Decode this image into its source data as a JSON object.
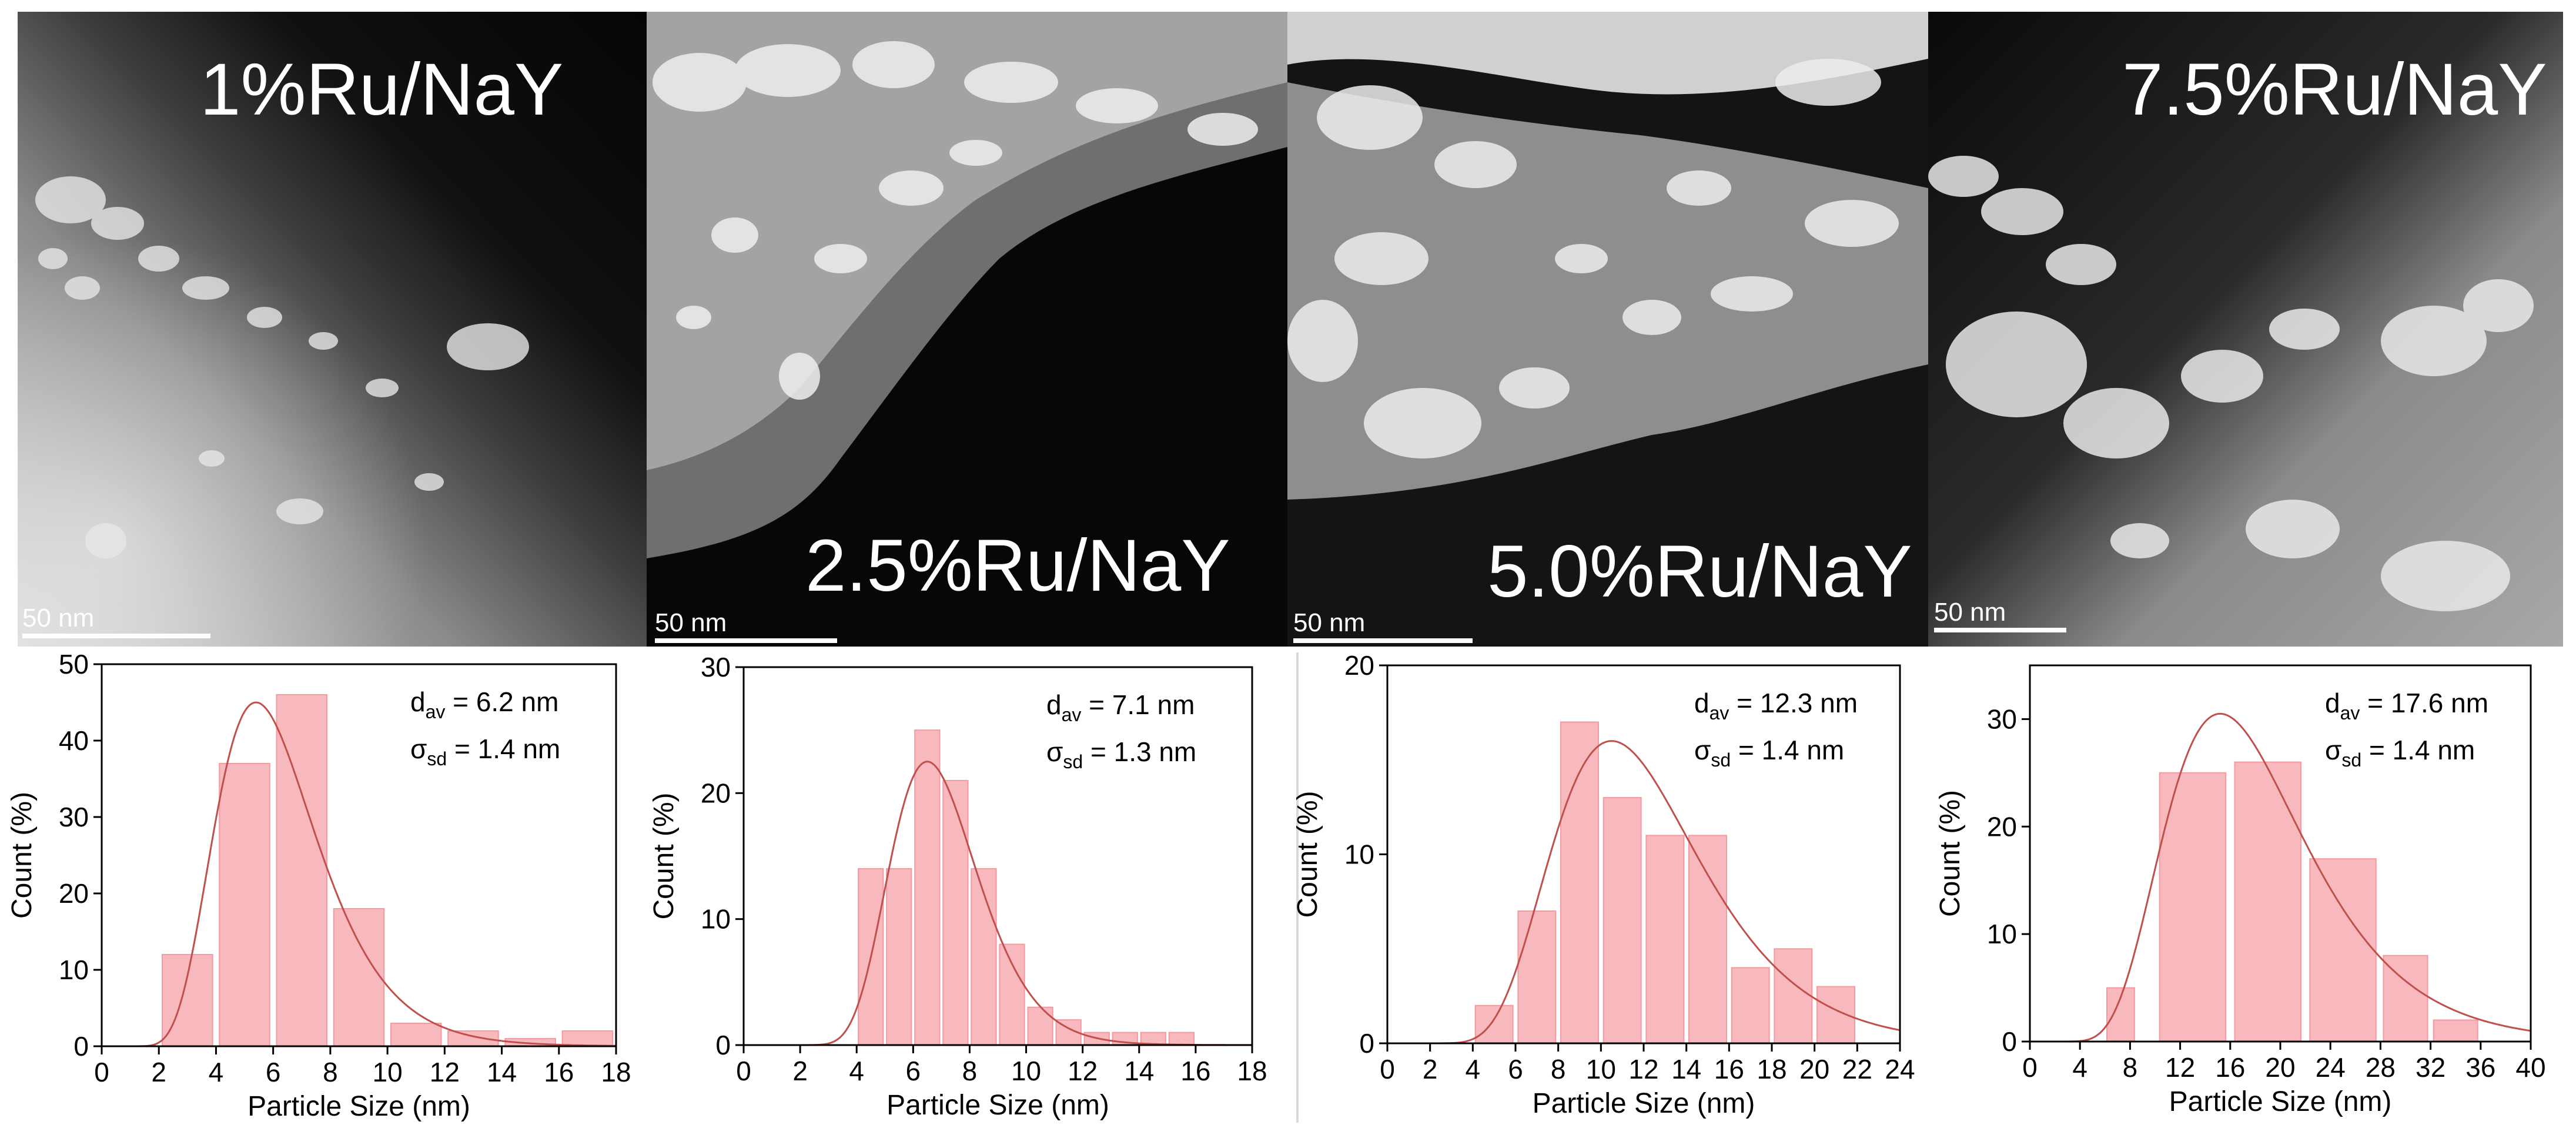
{
  "panels": [
    {
      "label": "1%Ru/NaY",
      "scale_bar": "50 nm"
    },
    {
      "label": "2.5%Ru/NaY",
      "scale_bar": "50 nm"
    },
    {
      "label": "5.0%Ru/NaY",
      "scale_bar": "50 nm"
    },
    {
      "label": "7.5%Ru/NaY",
      "scale_bar": "50 nm"
    }
  ],
  "colors": {
    "bar_fill": "#f7b9bd",
    "bar_stroke": "#f49aa1",
    "fit_line": "#c0504d",
    "axis": "#000000"
  },
  "chart_data": [
    {
      "type": "bar",
      "xlabel": "Particle Size (nm)",
      "ylabel": "Count (%)",
      "xlim": [
        0,
        18
      ],
      "ylim": [
        0,
        50
      ],
      "xticks": [
        0,
        2,
        4,
        6,
        8,
        10,
        12,
        14,
        16,
        18
      ],
      "yticks": [
        0,
        10,
        20,
        30,
        40,
        50
      ],
      "x": [
        3,
        5,
        7,
        9,
        11,
        13,
        15,
        17
      ],
      "bin_width": 2,
      "values": [
        12,
        37,
        46,
        18,
        3,
        2,
        1,
        2
      ],
      "annotation_line1": "= 6.2 nm",
      "annotation_line2": "= 1.4 nm",
      "fit": {
        "type": "lognormal",
        "mode": 5.4,
        "peak": 45,
        "sigma": 0.33
      }
    },
    {
      "type": "bar",
      "xlabel": "Particle Size (nm)",
      "ylabel": "Count (%)",
      "xlim": [
        0,
        18
      ],
      "ylim": [
        0,
        30
      ],
      "xticks": [
        0,
        2,
        4,
        6,
        8,
        10,
        12,
        14,
        16,
        18
      ],
      "yticks": [
        0,
        10,
        20,
        30
      ],
      "x": [
        4.5,
        5.5,
        6.5,
        7.5,
        8.5,
        9.5,
        10.5,
        11.5,
        12.5,
        13.5,
        14.5,
        15.5
      ],
      "bin_width": 1,
      "values": [
        14,
        14,
        25,
        21,
        14,
        8,
        3,
        2,
        1,
        1,
        1,
        1
      ],
      "annotation_line1": "= 7.1 nm",
      "annotation_line2": "= 1.3 nm",
      "fit": {
        "type": "lognormal",
        "mode": 6.5,
        "peak": 22.5,
        "sigma": 0.24
      }
    },
    {
      "type": "bar",
      "xlabel": "Particle Size (nm)",
      "ylabel": "Count (%)",
      "xlim": [
        0,
        24
      ],
      "ylim": [
        0,
        20
      ],
      "xticks": [
        0,
        2,
        4,
        6,
        8,
        10,
        12,
        14,
        16,
        18,
        20,
        22,
        24
      ],
      "yticks": [
        0,
        10,
        20
      ],
      "x": [
        5,
        7,
        9,
        11,
        13,
        15,
        17,
        19,
        21
      ],
      "bin_width": 2,
      "values": [
        2,
        7,
        17,
        13,
        11,
        11,
        4,
        5,
        3
      ],
      "annotation_line1": "= 12.3 nm",
      "annotation_line2": "= 1.4 nm",
      "fit": {
        "type": "lognormal",
        "mode": 10.5,
        "peak": 16,
        "sigma": 0.33
      }
    },
    {
      "type": "bar",
      "xlabel": "Particle Size (nm)",
      "ylabel": "Count (%)",
      "xlim": [
        0,
        40
      ],
      "ylim": [
        0,
        35
      ],
      "xticks": [
        0,
        4,
        8,
        12,
        16,
        20,
        24,
        28,
        32,
        36,
        40
      ],
      "yticks": [
        0,
        10,
        20,
        30
      ],
      "x": [
        7,
        13,
        19,
        25,
        29,
        33
      ],
      "bin_edges": [
        [
          6,
          8.5
        ],
        [
          10,
          16
        ],
        [
          16,
          22
        ],
        [
          22,
          28
        ],
        [
          28,
          32
        ],
        [
          32,
          36
        ]
      ],
      "values": [
        5,
        25,
        26,
        17,
        8,
        2
      ],
      "annotation_line1": "= 17.6 nm",
      "annotation_line2": "= 1.4 nm",
      "fit": {
        "type": "lognormal",
        "mode": 15.2,
        "peak": 30.5,
        "sigma": 0.37
      }
    }
  ]
}
